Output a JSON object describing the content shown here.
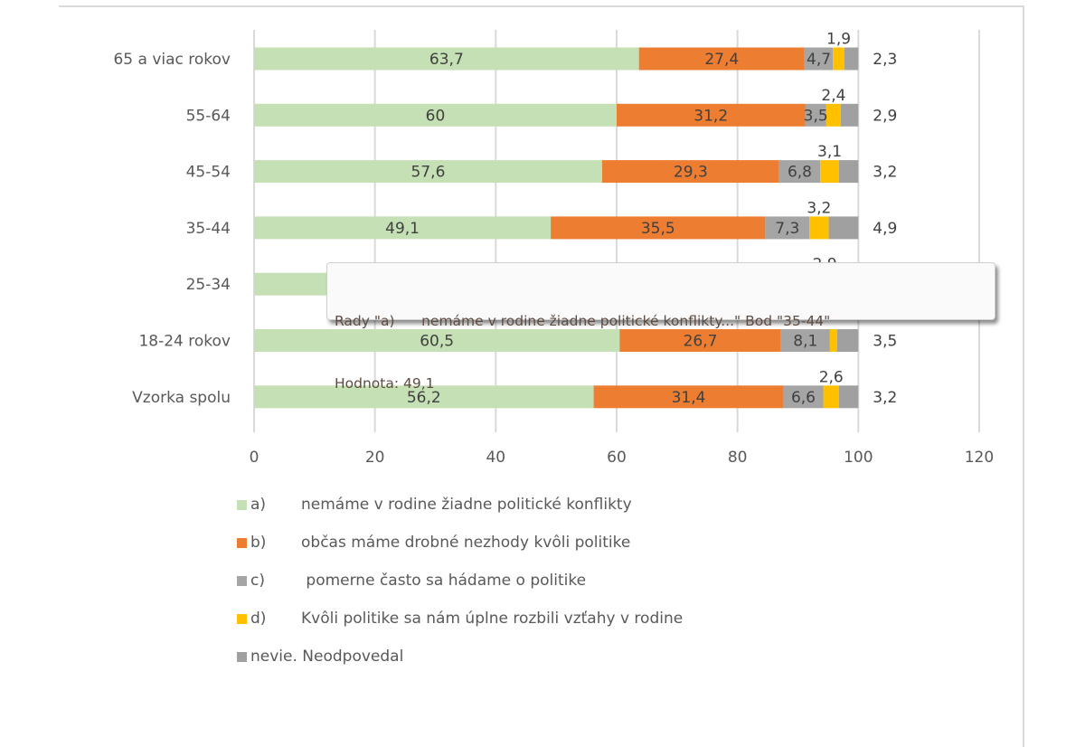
{
  "chart_data": {
    "type": "bar",
    "orientation": "horizontal",
    "stacked": true,
    "title": "",
    "xlabel": "",
    "ylabel": "",
    "xlim": [
      0,
      120
    ],
    "x_ticks": [
      "0",
      "20",
      "40",
      "60",
      "80",
      "100",
      "120"
    ],
    "grid": true,
    "legend_position": "bottom",
    "categories": [
      "65 a viac rokov",
      "55-64",
      "45-54",
      "35-44",
      "25-34",
      "18-24 rokov",
      "Vzorka spolu"
    ],
    "series": [
      {
        "name": "a)      nemáme v rodine žiadne politické konflikty",
        "code": "a)",
        "text": "nemáme v rodine žiadne politické konflikty",
        "color": "#c5e0b4",
        "values": [
          63.7,
          60,
          57.6,
          49.1,
          null,
          60.5,
          56.2
        ],
        "labels": [
          "63,7",
          "60",
          "57,6",
          "49,1",
          "",
          "60,5",
          "56,2"
        ]
      },
      {
        "name": "b)      občas máme drobné nezhody kvôli politike",
        "code": "b)",
        "text": "občas máme drobné nezhody kvôli politike",
        "color": "#ed7d31",
        "values": [
          27.4,
          31.2,
          29.3,
          35.5,
          null,
          26.7,
          31.4
        ],
        "labels": [
          "27,4",
          "31,2",
          "29,3",
          "35,5",
          "",
          "26,7",
          "31,4"
        ]
      },
      {
        "name": "c)       pomerne často sa hádame o politike",
        "code": "c)",
        "text": "pomerne často sa hádame o politike",
        "color": "#a5a5a5",
        "values": [
          4.7,
          3.5,
          6.8,
          7.3,
          null,
          8.1,
          6.6
        ],
        "labels": [
          "4,7",
          "3,5",
          "6,8",
          "7,3",
          "",
          "8,1",
          "6,6"
        ]
      },
      {
        "name": "d)      Kvôli politike sa nám úplne rozbili vzťahy v rodine",
        "code": "d)",
        "text": "Kvôli politike sa nám úplne rozbili vzťahy v rodine",
        "color": "#ffc000",
        "values": [
          1.9,
          2.4,
          3.1,
          3.2,
          2.9,
          1.2,
          2.6
        ],
        "labels": [
          "1,9",
          "2,4",
          "3,1",
          "3,2",
          "2,9",
          "",
          "2,6"
        ]
      },
      {
        "name": "nevie. Neodpovedal",
        "code": "",
        "text": "nevie. Neodpovedal",
        "color": "#a0a0a0",
        "values": [
          2.3,
          2.9,
          3.2,
          4.9,
          null,
          3.5,
          3.2
        ],
        "labels": [
          "2,3",
          "2,9",
          "3,2",
          "4,9",
          "",
          "3,5",
          "3,2"
        ]
      }
    ]
  },
  "legend": [
    {
      "code": "a)",
      "text": "nemáme v rodine žiadne politické konflikty",
      "color": "#c5e0b4"
    },
    {
      "code": "b)",
      "text": "občas máme drobné nezhody kvôli politike",
      "color": "#ed7d31"
    },
    {
      "code": "c)",
      "text": " pomerne často sa hádame o politike",
      "color": "#a5a5a5"
    },
    {
      "code": "d)",
      "text": "Kvôli politike sa nám úplne rozbili vzťahy v rodine",
      "color": "#ffc000"
    },
    {
      "code": "",
      "text": "nevie. Neodpovedal",
      "color": "#a0a0a0"
    }
  ],
  "tooltip": {
    "line1": "Rady \"a)      nemáme v rodine žiadne politické konflikty...\" Bod \"35-44\"",
    "line2": "Hodnota: 49,1"
  }
}
